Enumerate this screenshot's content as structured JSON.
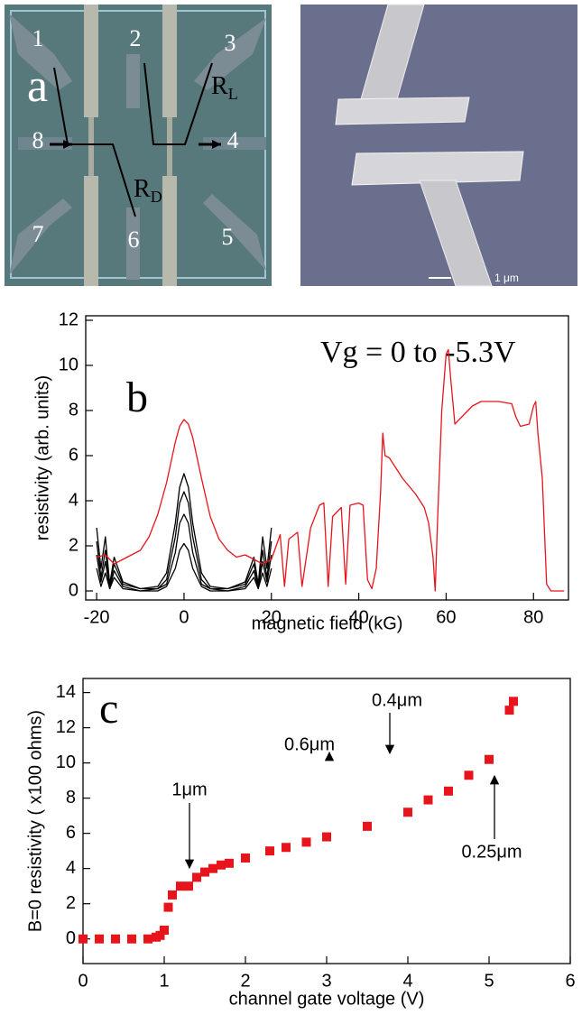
{
  "panel_a": {
    "panel_letter": "a",
    "contact_labels": [
      "1",
      "2",
      "3",
      "4",
      "5",
      "6",
      "7",
      "8"
    ],
    "resistor_labels": [
      {
        "letter": "R",
        "subscript": "L"
      },
      {
        "letter": "R",
        "subscript": "D"
      }
    ],
    "scale_bar": "1 μm"
  },
  "chart_data": [
    {
      "type": "line",
      "xlabel": "magnetic field (kG)",
      "ylabel": "resistivity (arb. units)",
      "annotations": [
        "b",
        "Vg = 0 to -5.3V"
      ],
      "xlim": [
        -22.5,
        88
      ],
      "ylim": [
        -0.4,
        12.2
      ],
      "xticks": [
        -20,
        0,
        20,
        40,
        60,
        80
      ],
      "yticks": [
        0,
        2,
        4,
        6,
        8,
        10,
        12
      ],
      "series": [
        {
          "color": "#000000",
          "x": [
            -20,
            -19,
            -18,
            -17,
            -16,
            -14,
            -10,
            -6,
            -4,
            -2,
            -1,
            0,
            1,
            2,
            4,
            6,
            10,
            14,
            16,
            17,
            18,
            19,
            20
          ],
          "values": [
            2.8,
            1,
            2.4,
            0.3,
            1.5,
            0.4,
            0.1,
            0.2,
            0.8,
            3,
            4.6,
            5.2,
            4.6,
            3,
            0.8,
            0.2,
            0.1,
            0.4,
            1.5,
            0.3,
            2.4,
            1,
            2.8
          ]
        },
        {
          "color": "#000000",
          "x": [
            -20,
            -19,
            -18,
            -17,
            -16,
            -14,
            -10,
            -6,
            -4,
            -2,
            -1,
            0,
            1,
            2,
            4,
            6,
            10,
            14,
            16,
            17,
            18,
            19,
            20
          ],
          "values": [
            2.2,
            0.6,
            1.8,
            0.2,
            1.2,
            0.3,
            0.1,
            0.1,
            0.5,
            2.4,
            3.9,
            4.4,
            3.9,
            2.4,
            0.5,
            0.1,
            0.1,
            0.3,
            1.2,
            0.2,
            1.8,
            0.6,
            2.2
          ]
        },
        {
          "color": "#000000",
          "x": [
            -20,
            -19,
            -18,
            -17,
            -16,
            -14,
            -10,
            -6,
            -4,
            -2,
            -1,
            0,
            1,
            2,
            4,
            6,
            10,
            14,
            16,
            17,
            18,
            19,
            20
          ],
          "values": [
            1.6,
            0.4,
            1.3,
            0.1,
            0.9,
            0.2,
            0,
            0.1,
            0.3,
            1.7,
            3,
            3.4,
            3,
            1.7,
            0.3,
            0.1,
            0,
            0.2,
            0.9,
            0.1,
            1.3,
            0.4,
            1.6
          ]
        },
        {
          "color": "#000000",
          "x": [
            -20,
            -19,
            -18,
            -17,
            -16,
            -14,
            -10,
            -6,
            -4,
            -2,
            -1,
            0,
            1,
            2,
            4,
            6,
            10,
            14,
            16,
            17,
            18,
            19,
            20
          ],
          "values": [
            1,
            0.2,
            0.8,
            0.1,
            0.6,
            0.1,
            0,
            0,
            0.2,
            1,
            1.8,
            2.1,
            1.8,
            1,
            0.2,
            0,
            0,
            0.1,
            0.6,
            0.1,
            0.8,
            0.2,
            1
          ]
        },
        {
          "color": "#e8141c",
          "x": [
            -20,
            -18,
            -16,
            -14,
            -12,
            -10,
            -8,
            -6,
            -4,
            -2,
            -1,
            0,
            1,
            2,
            4,
            6,
            8,
            10,
            12,
            14,
            16,
            18,
            20,
            22,
            23,
            24,
            26,
            27,
            29,
            31,
            32,
            33,
            34,
            36,
            37,
            38,
            40,
            41,
            42,
            43,
            44,
            45,
            45.5,
            46,
            47,
            50,
            53,
            55,
            56,
            57,
            57.5,
            58,
            59,
            60,
            60.5,
            61,
            62,
            64,
            66,
            68,
            72,
            75,
            76,
            77,
            79,
            80,
            80.5,
            81,
            82,
            83,
            84,
            87
          ],
          "values": [
            1.5,
            1.6,
            1.2,
            1.4,
            1.6,
            1.8,
            2.4,
            3.4,
            4.8,
            6.6,
            7.3,
            7.6,
            7.4,
            6.8,
            5,
            3.3,
            2.3,
            1.8,
            1.5,
            1.6,
            1.4,
            1.2,
            1.4,
            2.5,
            0.2,
            2.3,
            2.6,
            0.2,
            2.8,
            3.8,
            3.9,
            0.2,
            3.3,
            3.7,
            0.3,
            3.8,
            3.9,
            3.8,
            0.5,
            0.1,
            1.0,
            4.4,
            7.0,
            6.0,
            5.9,
            5.0,
            4.3,
            3.7,
            3.0,
            1.5,
            0.0,
            3.0,
            8.0,
            10.5,
            10.7,
            9.5,
            7.4,
            7.8,
            8.2,
            8.4,
            8.4,
            8.3,
            7.7,
            7.3,
            7.4,
            8.2,
            8.4,
            7.0,
            5.0,
            0.3,
            0.0,
            0.0
          ]
        }
      ]
    },
    {
      "type": "scatter",
      "xlabel": "channel gate voltage (V)",
      "ylabel": "B=0 resistivity ( x100 ohms)",
      "annotations": [
        "c",
        "1μm",
        "0.6μm",
        "0.4μm",
        "0.25μm"
      ],
      "xlim": [
        0,
        6
      ],
      "ylim": [
        -1.4,
        14.8
      ],
      "xticks": [
        0,
        1,
        2,
        3,
        4,
        5,
        6
      ],
      "yticks": [
        0,
        2,
        4,
        6,
        8,
        10,
        12,
        14
      ],
      "color": "#e8141c",
      "x": [
        0,
        0.2,
        0.4,
        0.6,
        0.8,
        0.9,
        0.95,
        1.0,
        1.05,
        1.1,
        1.2,
        1.3,
        1.4,
        1.5,
        1.6,
        1.7,
        1.8,
        2.0,
        2.3,
        2.5,
        2.75,
        3.0,
        3.5,
        4.0,
        4.25,
        4.5,
        4.75,
        5.0,
        5.25,
        5.3
      ],
      "values": [
        0,
        0,
        0,
        0,
        0,
        0.1,
        0.2,
        0.5,
        1.8,
        2.5,
        3.0,
        3.0,
        3.5,
        3.8,
        4.0,
        4.2,
        4.3,
        4.6,
        5.0,
        5.2,
        5.5,
        5.8,
        6.4,
        7.2,
        7.9,
        8.4,
        9.3,
        10.2,
        13.0,
        13.5
      ]
    }
  ]
}
